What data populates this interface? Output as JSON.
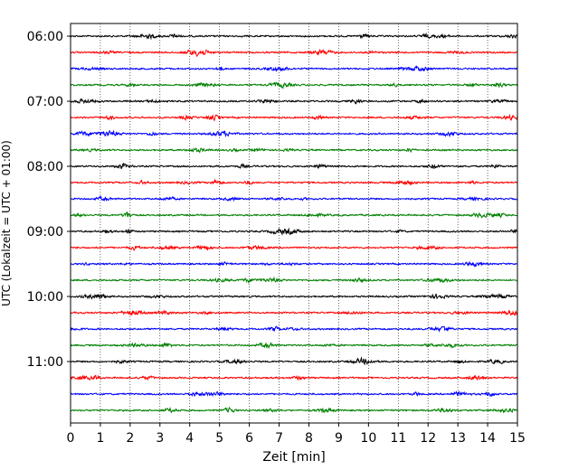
{
  "chart_data": {
    "type": "line",
    "title": "",
    "xlabel": "Zeit  [min]",
    "ylabel": "UTC (Lokalzeit = UTC + 01:00)",
    "xlim": [
      0,
      15
    ],
    "x_ticks": [
      "0",
      "1",
      "2",
      "3",
      "4",
      "5",
      "6",
      "7",
      "8",
      "9",
      "10",
      "11",
      "12",
      "13",
      "14",
      "15"
    ],
    "y_tick_labels": [
      "06:00",
      "07:00",
      "08:00",
      "09:00",
      "10:00",
      "11:00"
    ],
    "grid": "vertical dotted",
    "trace_interval_minutes": 15,
    "series": [
      {
        "start": "06:00",
        "color": "#000000"
      },
      {
        "start": "06:15",
        "color": "#ff0000"
      },
      {
        "start": "06:30",
        "color": "#0000ff"
      },
      {
        "start": "06:45",
        "color": "#008000"
      },
      {
        "start": "07:00",
        "color": "#000000"
      },
      {
        "start": "07:15",
        "color": "#ff0000"
      },
      {
        "start": "07:30",
        "color": "#0000ff"
      },
      {
        "start": "07:45",
        "color": "#008000"
      },
      {
        "start": "08:00",
        "color": "#000000"
      },
      {
        "start": "08:15",
        "color": "#ff0000"
      },
      {
        "start": "08:30",
        "color": "#0000ff"
      },
      {
        "start": "08:45",
        "color": "#008000"
      },
      {
        "start": "09:00",
        "color": "#000000"
      },
      {
        "start": "09:15",
        "color": "#ff0000"
      },
      {
        "start": "09:30",
        "color": "#0000ff"
      },
      {
        "start": "09:45",
        "color": "#008000"
      },
      {
        "start": "10:00",
        "color": "#000000"
      },
      {
        "start": "10:15",
        "color": "#ff0000"
      },
      {
        "start": "10:30",
        "color": "#0000ff"
      },
      {
        "start": "10:45",
        "color": "#008000"
      },
      {
        "start": "11:00",
        "color": "#000000"
      },
      {
        "start": "11:15",
        "color": "#ff0000"
      },
      {
        "start": "11:30",
        "color": "#0000ff"
      },
      {
        "start": "11:45",
        "color": "#008000"
      }
    ]
  }
}
